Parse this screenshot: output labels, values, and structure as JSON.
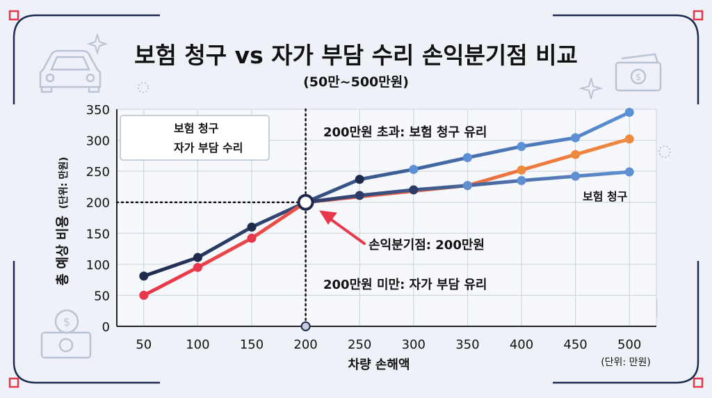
{
  "chart_data": {
    "type": "line",
    "title": "보험 청구 vs 자가 부담 수리 손익분기점 비교",
    "subtitle": "(50만~500만원)",
    "xlabel": "차량 손해액",
    "ylabel": "총 예상 비용",
    "ylabel_unit": "(단위: 만원)",
    "unit_note": "(단위: 만원)",
    "x": [
      50,
      100,
      150,
      200,
      250,
      300,
      350,
      400,
      450,
      500
    ],
    "ylim": [
      0,
      350
    ],
    "yticks": [
      0,
      50,
      100,
      150,
      200,
      250,
      300,
      350
    ],
    "grid": true,
    "legend_position": "top-left",
    "series": [
      {
        "name": "보험 청구",
        "color": "#1f2a4d",
        "color_end": "#5b8fd6",
        "points": [
          [
            50,
            81
          ],
          [
            100,
            111
          ],
          [
            150,
            160
          ],
          [
            200,
            200
          ],
          [
            250,
            237
          ],
          [
            300,
            253
          ],
          [
            350,
            272
          ],
          [
            400,
            290
          ],
          [
            450,
            304
          ],
          [
            500,
            345
          ]
        ]
      },
      {
        "name": "자가 부담 수리",
        "color": "#e8364a",
        "color_end": "#ee8a3c",
        "points": [
          [
            50,
            50
          ],
          [
            100,
            95
          ],
          [
            150,
            142
          ],
          [
            200,
            200
          ],
          [
            350,
            227
          ],
          [
            400,
            252
          ],
          [
            450,
            277
          ],
          [
            500,
            302
          ]
        ]
      },
      {
        "name": "",
        "color": "#2d3b66",
        "color_end": "#5f8fd0",
        "points": [
          [
            200,
            200
          ],
          [
            250,
            211
          ],
          [
            300,
            220
          ],
          [
            350,
            227
          ],
          [
            400,
            235
          ],
          [
            450,
            242
          ],
          [
            500,
            249
          ]
        ]
      }
    ],
    "annotations": {
      "above": "200만원 초과: 보험 청구 유리",
      "breakeven": "손익분기점: 200만원",
      "below": "200만원 미만: 자가 부담 유리",
      "line_label": "보험 청구"
    },
    "breakeven": {
      "x": 200,
      "y": 200
    }
  },
  "colors": {
    "background": "#eef2f8",
    "grid": "#c9d1de",
    "text": "#111111",
    "arrow": "#e8364a",
    "frame": "#1c2a52",
    "frame_accent": "#e8364a"
  },
  "decor_icons": [
    "car-icon",
    "cash-icon",
    "sparkle-icon"
  ]
}
